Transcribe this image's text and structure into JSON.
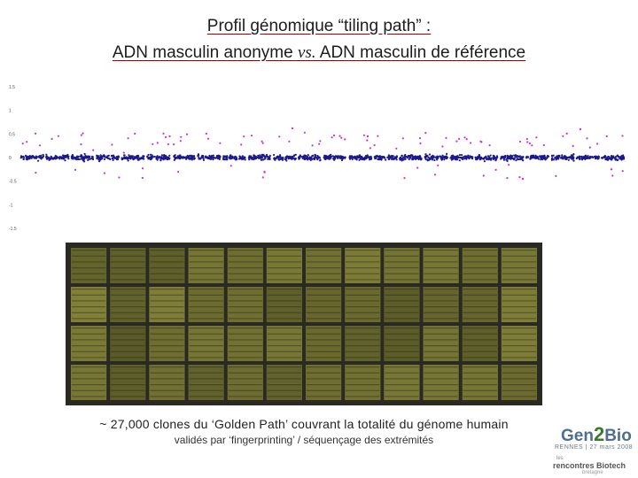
{
  "title_line1": "Profil génomique “tiling path” :",
  "title_line2_a": "ADN masculin anonyme ",
  "title_line2_vs": "vs.",
  "title_line2_b": " ADN masculin de référence",
  "caption_line1": "~ 27,000 clones du ‘Golden Path’ couvrant la totalité du génome humain",
  "caption_line2": "validés par ‘fingerprinting’ / séquençage des extrémités",
  "logo": {
    "gen": "Gen",
    "two": "2",
    "bio": "Bio",
    "event": "RENNES | 27 mars 2008",
    "rb_small": "les",
    "rb_main": "rencontres Biotech",
    "rb_sub": "bretagne"
  },
  "colors": {
    "clone_points": "#1a1a8c",
    "outlier_points": "#cc33cc",
    "array_background": "#2a2a22",
    "array_spot": "#8a8a35"
  },
  "array_grid": {
    "rows": 4,
    "cols": 12
  },
  "chart_data": {
    "type": "scatter",
    "title": "",
    "xlabel": "",
    "ylabel": "",
    "yticks": [
      "1.5",
      "1",
      "0.5",
      "0",
      "-0.5",
      "-1",
      "-1.5"
    ],
    "ylim": [
      -1.5,
      1.5
    ],
    "chromosome_segments": 24,
    "series": [
      {
        "values_range": [
          -0.15,
          0.15
        ]
      },
      {
        "values_range": [
          -0.5,
          0.65
        ]
      }
    ]
  }
}
